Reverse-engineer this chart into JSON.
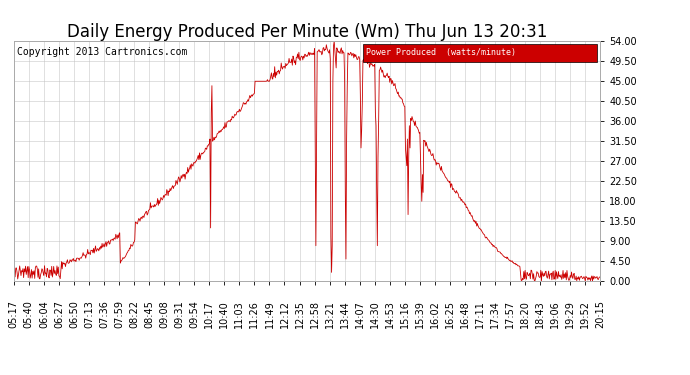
{
  "title": "Daily Energy Produced Per Minute (Wm) Thu Jun 13 20:31",
  "copyright": "Copyright 2013 Cartronics.com",
  "legend_label": "Power Produced  (watts/minute)",
  "legend_bg": "#cc0000",
  "legend_fg": "#ffffff",
  "line_color": "#cc0000",
  "background_color": "#ffffff",
  "grid_color": "#c0c0c0",
  "ylim": [
    0,
    54
  ],
  "yticks": [
    0.0,
    4.5,
    9.0,
    13.5,
    18.0,
    22.5,
    27.0,
    31.5,
    36.0,
    40.5,
    45.0,
    49.5,
    54.0
  ],
  "xtick_labels": [
    "05:17",
    "05:40",
    "06:04",
    "06:27",
    "06:50",
    "07:13",
    "07:36",
    "07:59",
    "08:22",
    "08:45",
    "09:08",
    "09:31",
    "09:54",
    "10:17",
    "10:40",
    "11:03",
    "11:26",
    "11:49",
    "12:12",
    "12:35",
    "12:58",
    "13:21",
    "13:44",
    "14:07",
    "14:30",
    "14:53",
    "15:16",
    "15:39",
    "16:02",
    "16:25",
    "16:48",
    "17:11",
    "17:34",
    "17:57",
    "18:20",
    "18:43",
    "19:06",
    "19:29",
    "19:52",
    "20:15"
  ],
  "title_fontsize": 12,
  "axis_fontsize": 7,
  "copyright_fontsize": 7
}
